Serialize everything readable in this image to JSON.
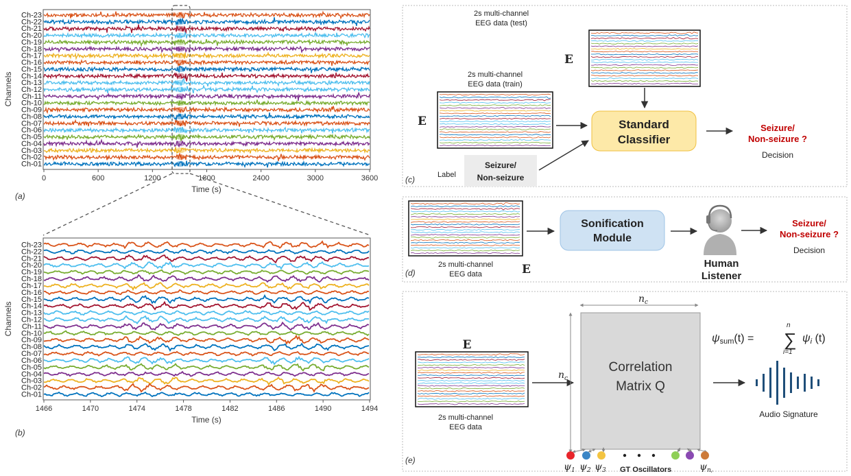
{
  "panel_a": {
    "tag": "(a)",
    "ylabel": "Channels",
    "xlabel": "Time (s)",
    "xticks": [
      "0",
      "600",
      "1200",
      "1800",
      "2400",
      "3000",
      "3600"
    ],
    "channels": [
      "Ch-23",
      "Ch-22",
      "Ch-21",
      "Ch-20",
      "Ch-19",
      "Ch-18",
      "Ch-17",
      "Ch-16",
      "Ch-15",
      "Ch-14",
      "Ch-13",
      "Ch-12",
      "Ch-11",
      "Ch-10",
      "Ch-09",
      "Ch-08",
      "Ch-07",
      "Ch-06",
      "Ch-05",
      "Ch-04",
      "Ch-03",
      "Ch-02",
      "Ch-01"
    ]
  },
  "panel_b": {
    "tag": "(b)",
    "ylabel": "Channels",
    "xlabel": "Time (s)",
    "xticks": [
      "1466",
      "1470",
      "1474",
      "1478",
      "1482",
      "1486",
      "1490",
      "1494"
    ]
  },
  "channel_colors": [
    "#d95319",
    "#0072bd",
    "#a2142f",
    "#4dbeee",
    "#77ac30",
    "#7e2f8e",
    "#edb120",
    "#d95319",
    "#0072bd",
    "#a2142f",
    "#4dbeee",
    "#4dbeee",
    "#7e2f8e",
    "#77ac30",
    "#d95319",
    "#0072bd",
    "#d95319",
    "#4dbeee",
    "#77ac30",
    "#7e2f8e",
    "#edb120",
    "#d95319",
    "#0072bd"
  ],
  "panel_c": {
    "tag": "(c)",
    "test_title_1": "2s multi-channel",
    "test_title_2": "EEG data (test)",
    "train_title_1": "2s multi-channel",
    "train_title_2": "EEG data (train)",
    "e_symbol": "E",
    "label_word": "Label",
    "label_box_1": "Seizure/",
    "label_box_2": "Non-seizure",
    "classifier_1": "Standard",
    "classifier_2": "Classifier",
    "output_1": "Seizure/",
    "output_2": "Non-seizure ?",
    "decision": "Decision"
  },
  "panel_d": {
    "tag": "(d)",
    "data_1": "2s multi-channel",
    "data_2": "EEG data",
    "e_symbol": "E",
    "module_1": "Sonification",
    "module_2": "Module",
    "listener_1": "Human",
    "listener_2": "Listener",
    "output_1": "Seizure/",
    "output_2": "Non-seizure ?",
    "decision": "Decision"
  },
  "panel_e": {
    "tag": "(e)",
    "e_symbol": "E",
    "data_1": "2s multi-channel",
    "data_2": "EEG data",
    "matrix_1": "Correlation",
    "matrix_2": "Matrix Q",
    "nc": "n",
    "nc_sub": "c",
    "oscillators": "GT Oscillators",
    "audio": "Audio Signature",
    "psi": "ψ",
    "psi_labels": [
      "1",
      "2",
      "3"
    ],
    "psi_last": "n",
    "formula_lhs": "ψ",
    "formula_sub": "sum",
    "formula_mid": "(t) = ",
    "formula_sum": "∑",
    "formula_upper": "n",
    "formula_lower": "i=1",
    "formula_rhs": "ψ",
    "formula_rhs_sub": "i",
    "formula_end": " (t)",
    "oscillator_colors": [
      "#e8252b",
      "#3b86c6",
      "#f3c441",
      "#8fcf57",
      "#8a4ab2",
      "#cd7b3a"
    ]
  }
}
